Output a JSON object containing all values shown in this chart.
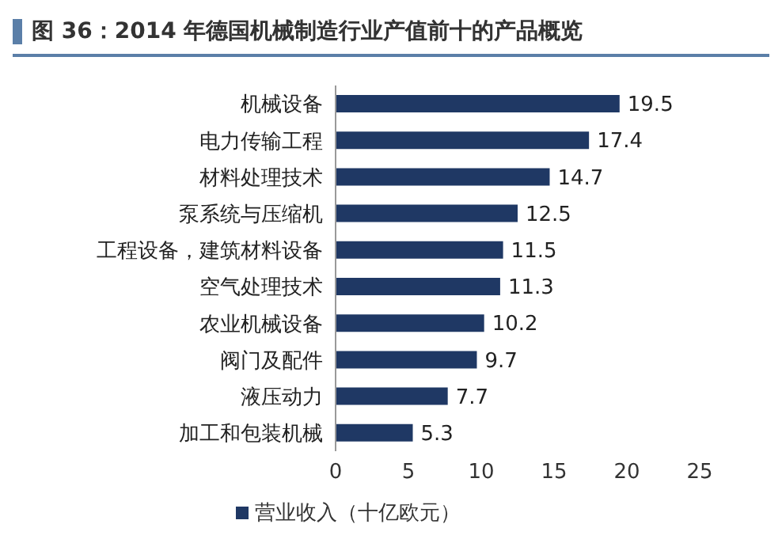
{
  "chart_data": {
    "type": "bar",
    "orientation": "horizontal",
    "title": "图 36：2014 年德国机械制造行业产值前十的产品概览",
    "categories": [
      "机械设备",
      "电力传输工程",
      "材料处理技术",
      "泵系统与压缩机",
      "工程设备，建筑材料设备",
      "空气处理技术",
      "农业机械设备",
      "阀门及配件",
      "液压动力",
      "加工和包装机械"
    ],
    "series": [
      {
        "name": "营业收入（十亿欧元）",
        "color": "#1f3864",
        "values": [
          19.5,
          17.4,
          14.7,
          12.5,
          11.5,
          11.3,
          10.2,
          9.7,
          7.7,
          5.3
        ]
      }
    ],
    "xlim": [
      0,
      25
    ],
    "xticks": [
      0,
      5,
      10,
      15,
      20,
      25
    ],
    "data_labels": true,
    "legend": "bottom",
    "grid": false
  }
}
